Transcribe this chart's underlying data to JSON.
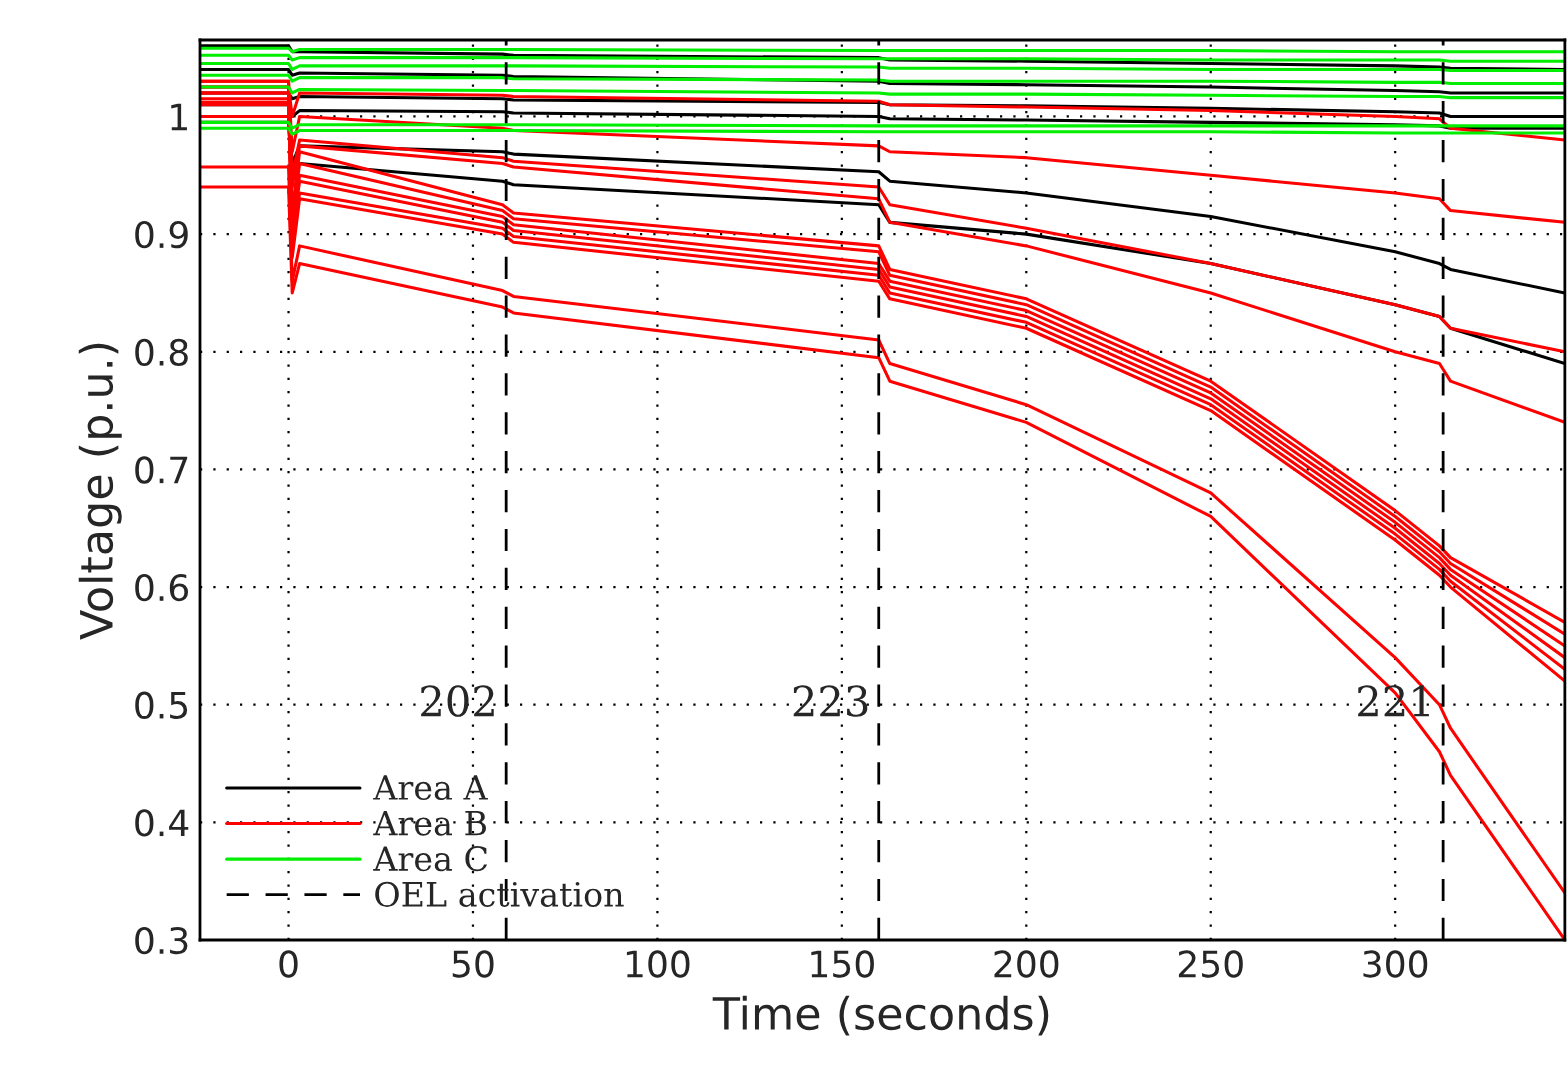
{
  "chart_data": {
    "type": "line",
    "xlabel": "Time (seconds)",
    "ylabel": "Voltage (p.u.)",
    "x": [
      -24,
      0,
      1,
      3,
      58,
      61,
      160,
      163,
      200,
      250,
      300,
      312,
      315,
      346
    ],
    "xlim": [
      -24,
      346
    ],
    "xticks": [
      0,
      50,
      100,
      150,
      200,
      250,
      300
    ],
    "ylim": [
      0.3,
      1.065
    ],
    "yticks": [
      0.3,
      0.4,
      0.5,
      0.6,
      0.7,
      0.8,
      0.9,
      {
        "value": 1.0,
        "label": "1"
      }
    ],
    "grid": true,
    "legend": "bottom left",
    "marker": "none",
    "line_style": "solid",
    "series": [
      {
        "name": "Area A",
        "color": "#000000",
        "values": [
          1.06,
          1.06,
          1.055,
          1.055,
          1.053,
          1.052,
          1.05,
          1.048,
          1.047,
          1.045,
          1.043,
          1.042,
          1.041,
          1.04
        ]
      },
      {
        "color": "#000000",
        "values": [
          1.04,
          1.04,
          1.035,
          1.037,
          1.035,
          1.034,
          1.03,
          1.028,
          1.027,
          1.025,
          1.022,
          1.021,
          1.02,
          1.02
        ]
      },
      {
        "color": "#000000",
        "values": [
          1.02,
          1.02,
          1.015,
          1.017,
          1.015,
          1.014,
          1.012,
          1.01,
          1.009,
          1.007,
          1.004,
          1.003,
          1.0,
          1.0
        ]
      },
      {
        "color": "#000000",
        "values": [
          1.01,
          1.01,
          1.0,
          1.005,
          1.004,
          1.003,
          1.0,
          0.998,
          0.997,
          0.995,
          0.993,
          0.992,
          0.99,
          0.99
        ]
      },
      {
        "color": "#000000",
        "values": [
          1.0,
          1.0,
          0.96,
          0.975,
          0.97,
          0.968,
          0.953,
          0.945,
          0.935,
          0.915,
          0.885,
          0.875,
          0.87,
          0.85
        ]
      },
      {
        "color": "#000000",
        "values": [
          0.995,
          0.995,
          0.95,
          0.96,
          0.945,
          0.942,
          0.925,
          0.91,
          0.9,
          0.875,
          0.84,
          0.83,
          0.82,
          0.79
        ]
      },
      {
        "name": "Area B",
        "color": "#ff0000",
        "values": [
          0.94,
          0.94,
          0.85,
          0.875,
          0.838,
          0.833,
          0.795,
          0.775,
          0.74,
          0.66,
          0.51,
          0.46,
          0.44,
          0.3
        ]
      },
      {
        "color": "#ff0000",
        "values": [
          0.957,
          0.957,
          0.86,
          0.89,
          0.852,
          0.847,
          0.81,
          0.79,
          0.755,
          0.68,
          0.54,
          0.5,
          0.48,
          0.34
        ]
      },
      {
        "color": "#ff0000",
        "values": [
          1.02,
          1.02,
          0.88,
          0.93,
          0.9,
          0.893,
          0.86,
          0.845,
          0.82,
          0.75,
          0.64,
          0.61,
          0.6,
          0.52
        ]
      },
      {
        "color": "#ff0000",
        "values": [
          1.025,
          1.025,
          0.89,
          0.935,
          0.905,
          0.898,
          0.865,
          0.85,
          0.825,
          0.755,
          0.645,
          0.615,
          0.605,
          0.53
        ]
      },
      {
        "color": "#ff0000",
        "values": [
          1.03,
          1.03,
          0.9,
          0.945,
          0.91,
          0.903,
          0.87,
          0.855,
          0.83,
          0.76,
          0.65,
          0.62,
          0.61,
          0.54
        ]
      },
      {
        "color": "#ff0000",
        "values": [
          1.015,
          1.015,
          0.9,
          0.95,
          0.915,
          0.908,
          0.875,
          0.86,
          0.835,
          0.765,
          0.655,
          0.625,
          0.615,
          0.55
        ]
      },
      {
        "color": "#ff0000",
        "values": [
          1.01,
          1.01,
          0.91,
          0.96,
          0.92,
          0.913,
          0.885,
          0.865,
          0.84,
          0.77,
          0.66,
          0.63,
          0.62,
          0.56
        ]
      },
      {
        "color": "#ff0000",
        "values": [
          1.0,
          1.0,
          0.92,
          0.97,
          0.925,
          0.918,
          0.89,
          0.87,
          0.845,
          0.775,
          0.665,
          0.635,
          0.625,
          0.57
        ]
      },
      {
        "color": "#ff0000",
        "values": [
          1.03,
          1.03,
          0.97,
          1.0,
          0.99,
          0.988,
          0.975,
          0.97,
          0.965,
          0.95,
          0.935,
          0.93,
          0.92,
          0.91
        ]
      },
      {
        "color": "#ff0000",
        "values": [
          1.02,
          1.02,
          0.95,
          0.98,
          0.965,
          0.962,
          0.94,
          0.925,
          0.905,
          0.875,
          0.84,
          0.83,
          0.82,
          0.8
        ]
      },
      {
        "color": "#ff0000",
        "values": [
          1.012,
          1.012,
          0.94,
          0.975,
          0.96,
          0.957,
          0.93,
          0.91,
          0.89,
          0.85,
          0.8,
          0.79,
          0.775,
          0.74
        ]
      },
      {
        "color": "#ff0000",
        "values": [
          1.025,
          1.025,
          1.0,
          1.02,
          1.018,
          1.017,
          1.013,
          1.01,
          1.008,
          1.005,
          1.0,
          0.998,
          0.99,
          0.98
        ]
      },
      {
        "name": "Area C",
        "color": "#00ee00",
        "values": [
          1.058,
          1.058,
          1.055,
          1.057,
          1.057,
          1.057,
          1.056,
          1.056,
          1.056,
          1.056,
          1.055,
          1.055,
          1.055,
          1.055
        ]
      },
      {
        "color": "#00ee00",
        "values": [
          1.052,
          1.052,
          1.048,
          1.05,
          1.05,
          1.05,
          1.049,
          1.049,
          1.049,
          1.048,
          1.048,
          1.048,
          1.047,
          1.047
        ]
      },
      {
        "color": "#00ee00",
        "values": [
          1.045,
          1.045,
          1.04,
          1.043,
          1.043,
          1.043,
          1.042,
          1.041,
          1.041,
          1.04,
          1.04,
          1.04,
          1.039,
          1.039
        ]
      },
      {
        "color": "#00ee00",
        "values": [
          1.035,
          1.035,
          1.03,
          1.033,
          1.033,
          1.032,
          1.031,
          1.03,
          1.03,
          1.03,
          1.029,
          1.029,
          1.028,
          1.028
        ]
      },
      {
        "color": "#00ee00",
        "values": [
          1.025,
          1.025,
          1.02,
          1.023,
          1.022,
          1.022,
          1.02,
          1.019,
          1.019,
          1.018,
          1.017,
          1.017,
          1.016,
          1.016
        ]
      },
      {
        "color": "#00ee00",
        "values": [
          0.995,
          0.995,
          0.99,
          0.993,
          0.993,
          0.993,
          0.992,
          0.992,
          0.992,
          0.992,
          0.992,
          0.992,
          0.992,
          0.992
        ]
      },
      {
        "color": "#00ee00",
        "values": [
          0.99,
          0.99,
          0.985,
          0.988,
          0.988,
          0.988,
          0.987,
          0.987,
          0.987,
          0.987,
          0.986,
          0.986,
          0.986,
          0.986
        ]
      }
    ],
    "ref_lines": [
      {
        "axis": "x",
        "value": 59,
        "label": "OEL activation",
        "color": "#000000",
        "line_style": "dashed"
      },
      {
        "axis": "x",
        "value": 160,
        "color": "#000000",
        "line_style": "dashed"
      },
      {
        "axis": "x",
        "value": 313,
        "color": "#000000",
        "line_style": "dashed"
      }
    ],
    "annotations": [
      {
        "text": "202",
        "x": 59,
        "y": 0.5
      },
      {
        "text": "223",
        "x": 160,
        "y": 0.5
      },
      {
        "text": "221",
        "x": 313,
        "y": 0.5
      }
    ]
  }
}
